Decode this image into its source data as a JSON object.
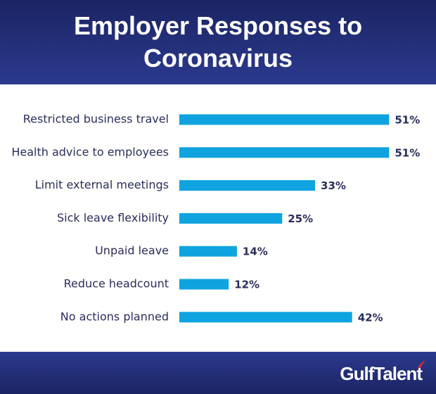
{
  "chart_data": {
    "type": "bar",
    "orientation": "horizontal",
    "title": "Employer Responses to Coronavirus",
    "categories": [
      "Restricted business travel",
      "Health advice to employees",
      "Limit external meetings",
      "Sick leave flexibility",
      "Unpaid leave",
      "Reduce headcount",
      "No actions planned"
    ],
    "values": [
      51,
      51,
      33,
      25,
      14,
      12,
      42
    ],
    "value_labels": [
      "51%",
      "51%",
      "33%",
      "25%",
      "14%",
      "12%",
      "42%"
    ],
    "color": "#0fa3df"
  },
  "footer": {
    "logo": "GulfTalent"
  }
}
